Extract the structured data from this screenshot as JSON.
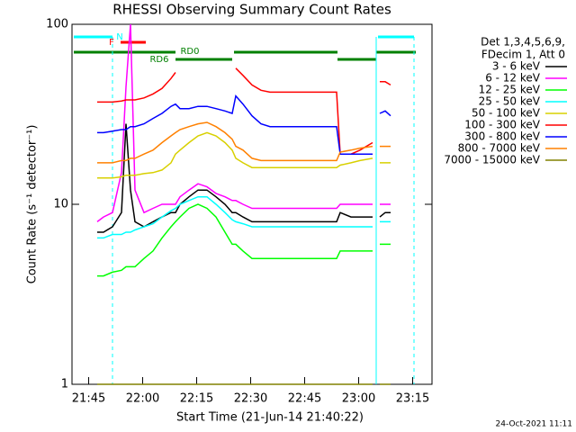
{
  "chart_data": {
    "type": "line",
    "title": "RHESSI Observing Summary Count Rates",
    "xlabel": "Start Time (21-Jun-14 21:40:22)",
    "ylabel": "Count Rate (s⁻¹ detector⁻¹)",
    "legend_header": [
      "Det 1,3,4,5,6,9,",
      "FDecim 1, Att 0"
    ],
    "legend": "right",
    "footer": "24-Oct-2021 11:11",
    "annotations": [
      "N",
      "F",
      "RD0",
      "RD6"
    ],
    "log_y": true,
    "xlim": [
      0,
      100
    ],
    "xticks": [
      {
        "value": 4.63,
        "label": "21:45"
      },
      {
        "value": 19.63,
        "label": "22:00"
      },
      {
        "value": 34.63,
        "label": "22:15"
      },
      {
        "value": 49.63,
        "label": "22:30"
      },
      {
        "value": 64.63,
        "label": "22:45"
      },
      {
        "value": 79.63,
        "label": "23:00"
      },
      {
        "value": 94.63,
        "label": "23:15"
      }
    ],
    "ylim": [
      1,
      100
    ],
    "yticks": [
      1,
      10,
      100
    ],
    "x": [
      7,
      8.75,
      11.25,
      13.75,
      15,
      16.25,
      17.5,
      20,
      22.5,
      25,
      27.5,
      28.75,
      30,
      32.5,
      35,
      37.5,
      40,
      42.5,
      44.5,
      45.5,
      47.5,
      50,
      52.5,
      55,
      60,
      65,
      70,
      73.5,
      74.5,
      77.5,
      80,
      83.5,
      84.5,
      85.5,
      87,
      88.5
    ],
    "series": [
      {
        "name": "3 - 6 keV",
        "color": "#000000",
        "values": [
          7,
          7,
          7.5,
          9,
          28,
          12,
          8,
          7.5,
          8,
          8.5,
          9,
          9,
          10,
          11,
          12,
          12,
          11,
          10,
          9,
          9,
          8.5,
          8,
          8,
          8,
          8,
          8,
          8,
          8,
          9,
          8.5,
          8.5,
          8.5,
          null,
          8.5,
          9,
          9
        ]
      },
      {
        "name": "6 - 12 keV",
        "color": "#ff00ff",
        "values": [
          8,
          8.5,
          9,
          15,
          45,
          100,
          12,
          9,
          9.5,
          10,
          10,
          10,
          11,
          12,
          13,
          12.5,
          11.5,
          11,
          10.5,
          10.5,
          10,
          9.5,
          9.5,
          9.5,
          9.5,
          9.5,
          9.5,
          9.5,
          10,
          10,
          10,
          10,
          null,
          10,
          10,
          10
        ]
      },
      {
        "name": "12 - 25 keV",
        "color": "#00ff00",
        "values": [
          4,
          4,
          4.2,
          4.3,
          4.5,
          4.5,
          4.5,
          5,
          5.5,
          6.5,
          7.5,
          8,
          8.5,
          9.5,
          10,
          9.5,
          8.5,
          7,
          6,
          6,
          5.5,
          5,
          5,
          5,
          5,
          5,
          5,
          5,
          5.5,
          5.5,
          5.5,
          5.5,
          null,
          6,
          6,
          6
        ]
      },
      {
        "name": "25 - 50 keV",
        "color": "#00ffff",
        "values": [
          6.5,
          6.5,
          6.8,
          6.8,
          7,
          7,
          7.2,
          7.5,
          7.8,
          8.5,
          9.2,
          9.5,
          10,
          10.5,
          11,
          11,
          10,
          9,
          8.2,
          8,
          7.8,
          7.5,
          7.5,
          7.5,
          7.5,
          7.5,
          7.5,
          7.5,
          7.5,
          7.5,
          7.5,
          7.5,
          null,
          8,
          8,
          8
        ]
      },
      {
        "name": "50 - 100 keV",
        "color": "#d8d000",
        "values": [
          14,
          14,
          14,
          14.2,
          14.5,
          14.5,
          14.5,
          14.8,
          15,
          15.5,
          17,
          19,
          20,
          22,
          24,
          25,
          24,
          22,
          20,
          18,
          17,
          16,
          16,
          16,
          16,
          16,
          16,
          16,
          16.5,
          17,
          17.5,
          18,
          null,
          17,
          17,
          17
        ]
      },
      {
        "name": "100 - 300 keV",
        "color": "#ff0000",
        "values": [
          37,
          37,
          37,
          37.5,
          38,
          38,
          38,
          39,
          41,
          44,
          50,
          54,
          null,
          null,
          null,
          null,
          null,
          null,
          null,
          57,
          52,
          46,
          43,
          42,
          42,
          42,
          42,
          42,
          19,
          19,
          20,
          22,
          null,
          48,
          48,
          46
        ]
      },
      {
        "name": "300 - 800 keV",
        "color": "#0000ff",
        "values": [
          25,
          25,
          25.5,
          26,
          26,
          27,
          27,
          28,
          30,
          32,
          35,
          36,
          34,
          34,
          35,
          35,
          34,
          33,
          32,
          40,
          36,
          31,
          28,
          27,
          27,
          27,
          27,
          27,
          19,
          19,
          19,
          19,
          null,
          32,
          33,
          31
        ]
      },
      {
        "name": "800 - 7000 keV",
        "color": "#ff8000",
        "values": [
          17,
          17,
          17,
          17.5,
          17.5,
          18,
          18,
          19,
          20,
          22,
          24,
          25,
          26,
          27,
          28,
          28.5,
          27,
          25,
          23,
          21,
          20,
          18,
          17.5,
          17.5,
          17.5,
          17.5,
          17.5,
          17.5,
          19.5,
          20,
          20.5,
          21,
          null,
          21,
          21,
          21
        ]
      },
      {
        "name": "7000 - 15000 keV",
        "color": "#808000",
        "values": [
          1,
          1,
          1,
          1,
          1,
          1,
          1,
          1,
          1,
          1,
          1,
          1,
          1,
          1,
          1,
          1,
          1,
          1,
          1,
          1,
          1,
          1,
          1,
          1,
          1,
          1,
          1,
          1,
          1,
          1,
          1,
          1,
          null,
          1,
          1,
          1
        ]
      }
    ]
  }
}
